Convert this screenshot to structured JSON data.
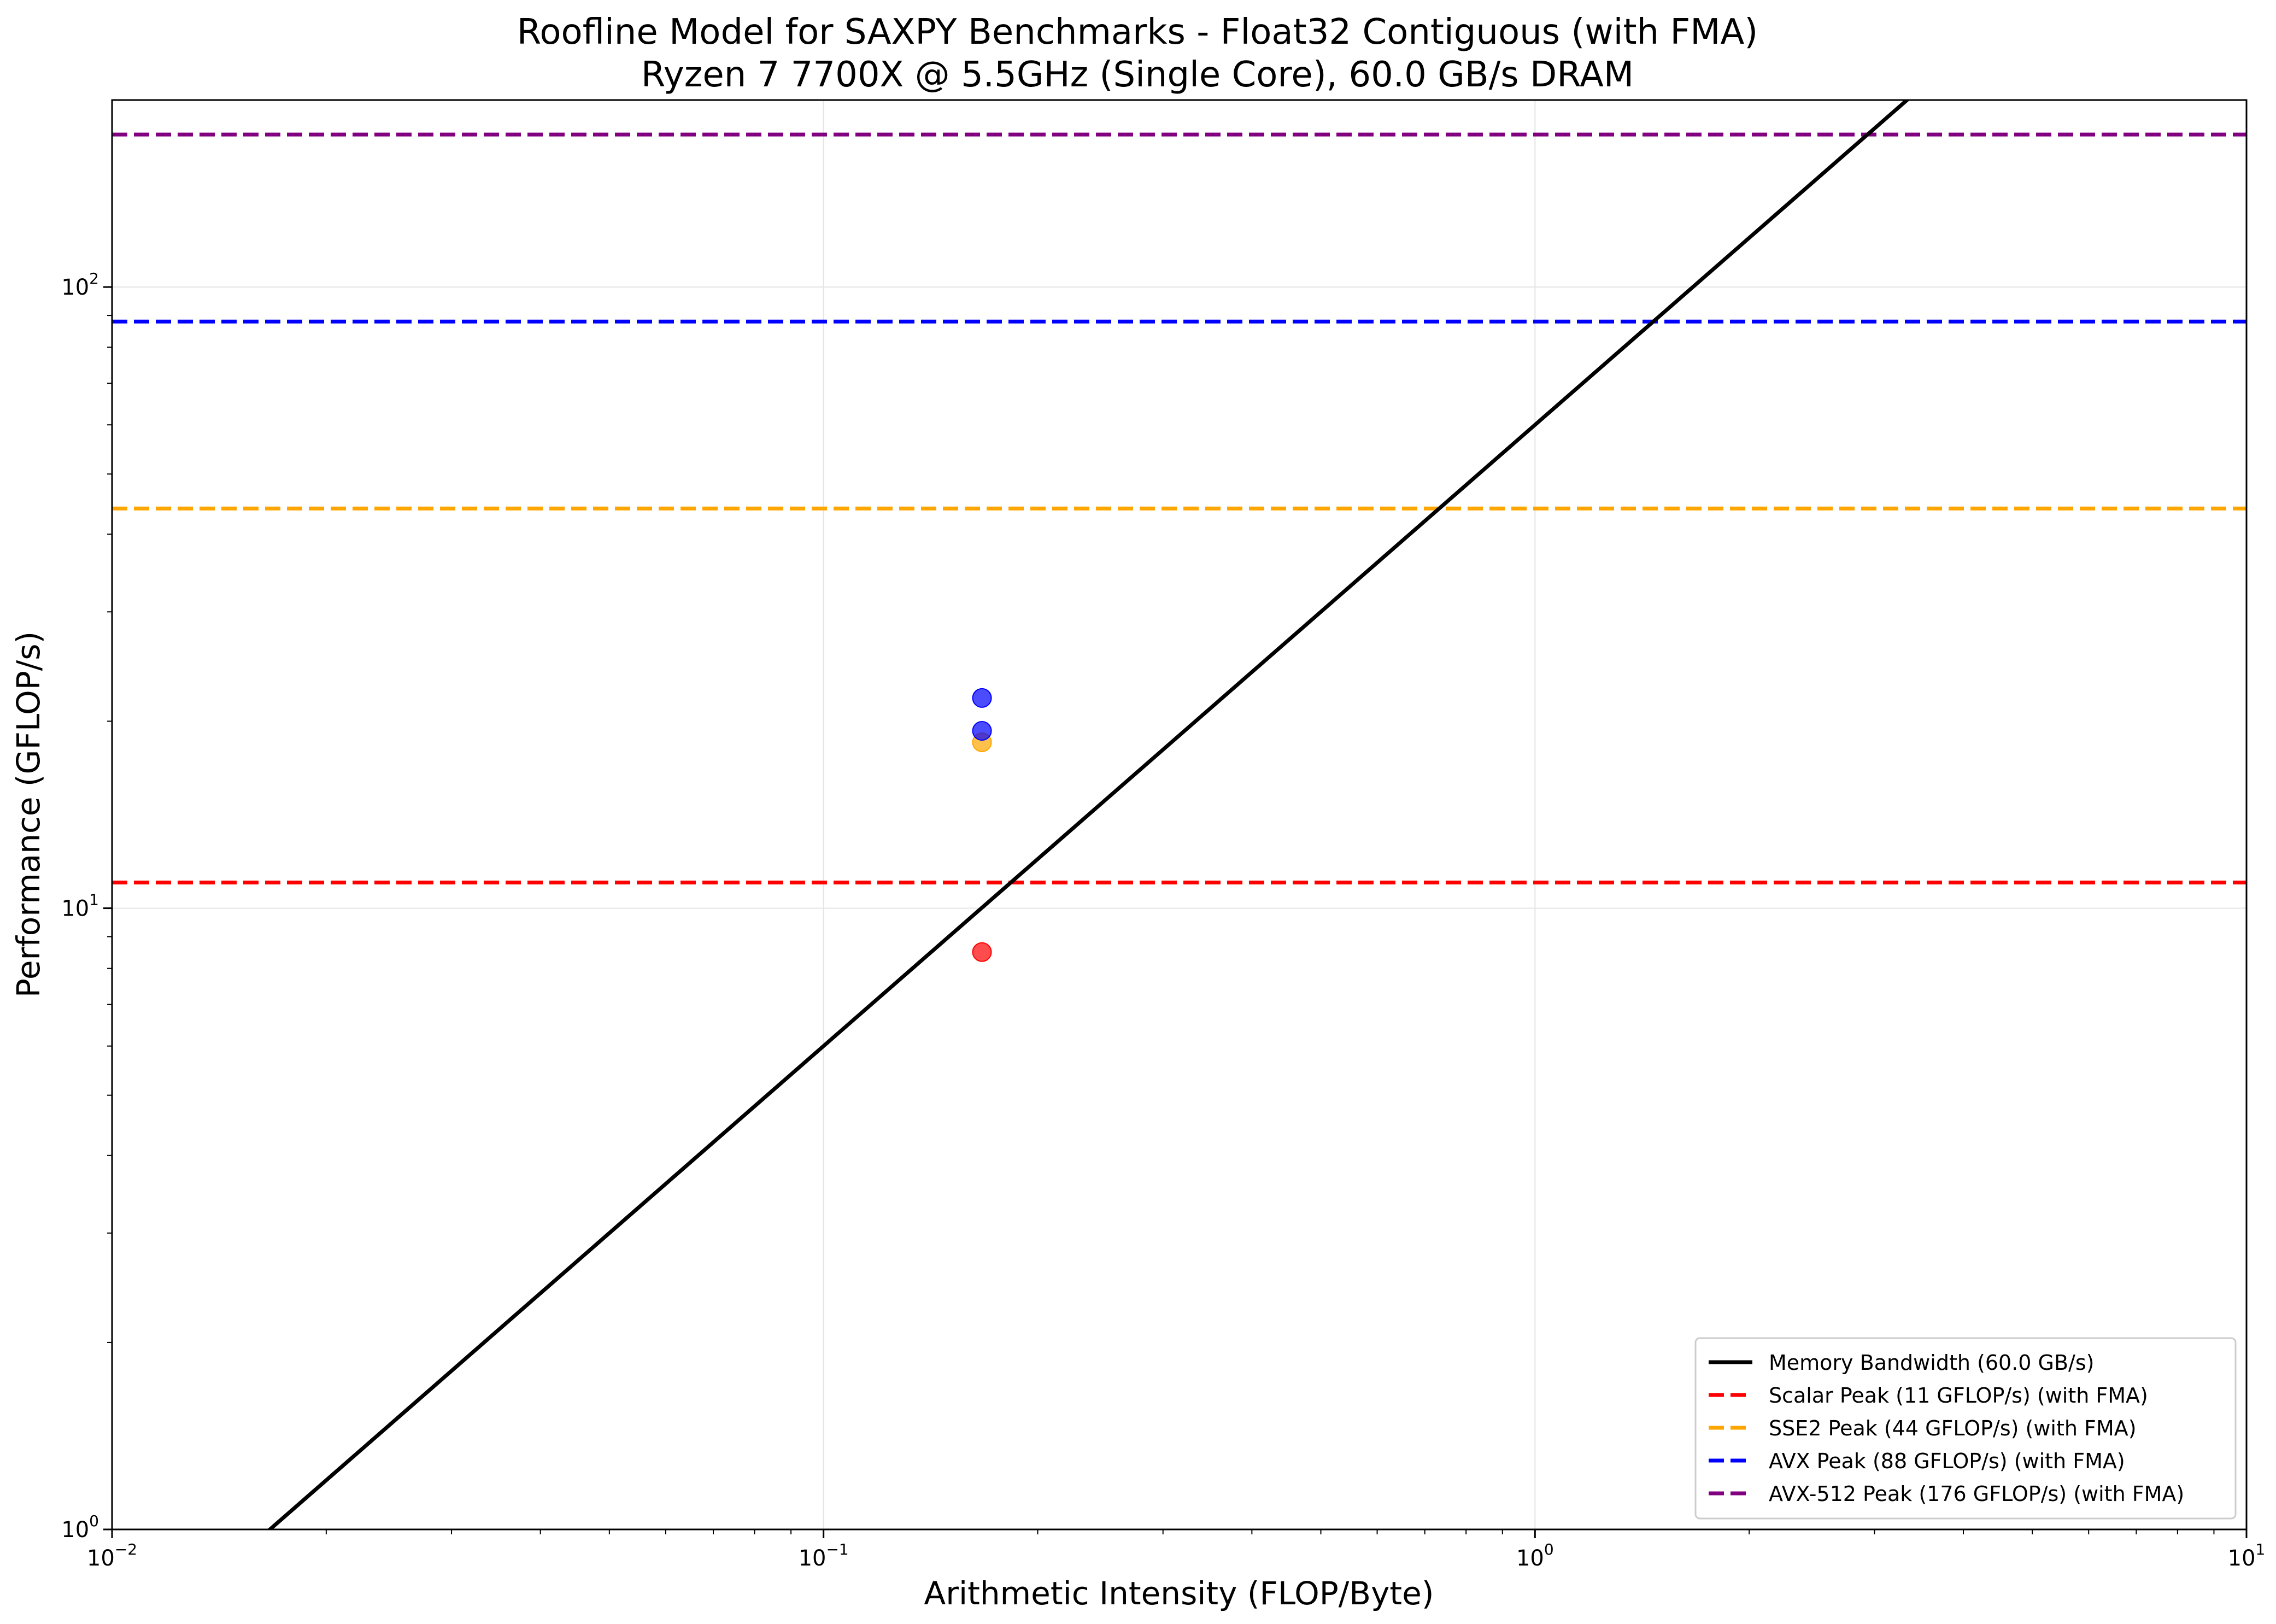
{
  "chart_data": {
    "type": "line",
    "title": "Roofline Model for SAXPY Benchmarks - Float32 Contiguous (with FMA)",
    "subtitle": "Ryzen 7 7700X @ 5.5GHz (Single Core), 60.0 GB/s DRAM",
    "xlabel": "Arithmetic Intensity (FLOP/Byte)",
    "ylabel": "Performance (GFLOP/s)",
    "xscale": "log",
    "yscale": "log",
    "xlim": [
      0.01,
      10
    ],
    "ylim": [
      1,
      200
    ],
    "grid": true,
    "legend_position": "bottom-right",
    "x_ticks": [
      {
        "value": 0.01,
        "base": "10",
        "exp": "−2"
      },
      {
        "value": 0.1,
        "base": "10",
        "exp": "−1"
      },
      {
        "value": 1,
        "base": "10",
        "exp": "0"
      },
      {
        "value": 10,
        "base": "10",
        "exp": "1"
      }
    ],
    "y_ticks": [
      {
        "value": 1,
        "base": "10",
        "exp": "0"
      },
      {
        "value": 10,
        "base": "10",
        "exp": "1"
      },
      {
        "value": 100,
        "base": "10",
        "exp": "2"
      }
    ],
    "bandwidth_line": {
      "name": "Memory Bandwidth (60.0 GB/s)",
      "slope_gbps": 60.0,
      "color": "#000000"
    },
    "ceilings": [
      {
        "name": "Scalar Peak (11 GFLOP/s) (with FMA)",
        "value": 11,
        "color": "#ff0000"
      },
      {
        "name": "SSE2 Peak (44 GFLOP/s) (with FMA)",
        "value": 44,
        "color": "#ffa500"
      },
      {
        "name": "AVX Peak (88 GFLOP/s) (with FMA)",
        "value": 88,
        "color": "#0000ff"
      },
      {
        "name": "AVX-512 Peak (176 GFLOP/s) (with FMA)",
        "value": 176,
        "color": "#800080"
      }
    ],
    "points": [
      {
        "x": 0.167,
        "y": 8.5,
        "color": "#ff0000"
      },
      {
        "x": 0.167,
        "y": 18.5,
        "color": "#ffa500"
      },
      {
        "x": 0.167,
        "y": 19.3,
        "color": "#0000ff"
      },
      {
        "x": 0.167,
        "y": 21.8,
        "color": "#0000ff"
      }
    ]
  }
}
